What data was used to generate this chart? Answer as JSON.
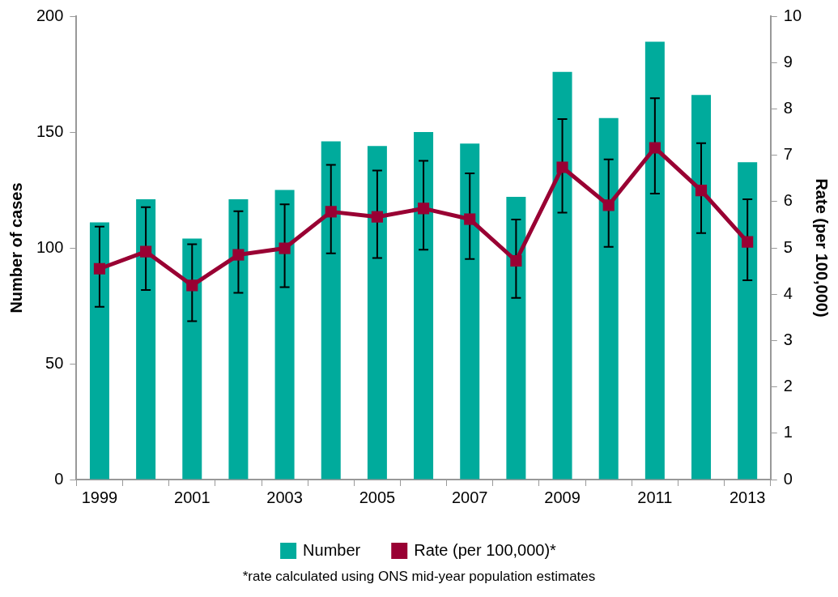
{
  "chart_data": {
    "type": "bar",
    "categories": [
      "1999",
      null,
      "2001",
      null,
      "2003",
      null,
      "2005",
      null,
      "2007",
      null,
      "2009",
      null,
      "2011",
      null,
      "2013"
    ],
    "series": [
      {
        "name": "Number",
        "color": "#00ab9c",
        "values": [
          111,
          121,
          104,
          121,
          125,
          146,
          144,
          150,
          145,
          122,
          176,
          156,
          189,
          166,
          137
        ]
      },
      {
        "name": "Rate (per 100,000)*",
        "type": "line",
        "axis": "y2",
        "color": "#990033",
        "marker": "square",
        "values": [
          4.55,
          4.92,
          4.19,
          4.85,
          4.99,
          5.78,
          5.67,
          5.85,
          5.62,
          4.72,
          6.74,
          5.92,
          7.16,
          6.24,
          5.13
        ],
        "errors": [
          [
            3.73,
            5.46
          ],
          [
            4.09,
            5.88
          ],
          [
            3.42,
            5.08
          ],
          [
            4.03,
            5.79
          ],
          [
            4.15,
            5.94
          ],
          [
            4.88,
            6.79
          ],
          [
            4.78,
            6.67
          ],
          [
            4.96,
            6.88
          ],
          [
            4.76,
            6.61
          ],
          [
            3.92,
            5.61
          ],
          [
            5.76,
            7.78
          ],
          [
            5.02,
            6.91
          ],
          [
            6.17,
            8.23
          ],
          [
            5.32,
            7.26
          ],
          [
            4.3,
            6.05
          ]
        ]
      }
    ],
    "ylabel": "Number of cases",
    "y2label": "Rate (per 100,000)",
    "ylim": [
      0,
      200
    ],
    "yticks": [
      0,
      50,
      100,
      150,
      200
    ],
    "y2lim": [
      0,
      10
    ],
    "y2ticks": [
      0,
      1,
      2,
      3,
      4,
      5,
      6,
      7,
      8,
      9,
      10
    ],
    "grid": false,
    "legend": "bottom",
    "annotations": [
      "*rate calculated using ONS mid-year population estimates"
    ]
  }
}
